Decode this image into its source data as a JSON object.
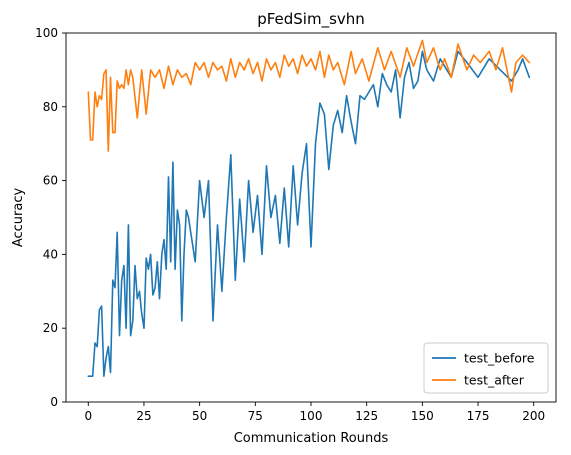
{
  "chart_data": {
    "type": "line",
    "title": "pFedSim_svhn",
    "xlabel": "Communication Rounds",
    "ylabel": "Accuracy",
    "xlim": [
      -10,
      210
    ],
    "ylim": [
      0,
      100
    ],
    "xticks": [
      0,
      25,
      50,
      75,
      100,
      125,
      150,
      175,
      200
    ],
    "yticks": [
      0,
      20,
      40,
      60,
      80,
      100
    ],
    "grid": false,
    "legend_position": "lower-right",
    "series": [
      {
        "name": "test_before",
        "color": "#1f77b4",
        "x": [
          0,
          2,
          3,
          4,
          5,
          6,
          7,
          8,
          9,
          10,
          11,
          12,
          13,
          14,
          15,
          16,
          17,
          18,
          19,
          20,
          21,
          22,
          23,
          24,
          25,
          26,
          27,
          28,
          29,
          30,
          31,
          32,
          33,
          34,
          35,
          36,
          37,
          38,
          39,
          40,
          41,
          42,
          43,
          44,
          45,
          46,
          48,
          50,
          52,
          54,
          56,
          58,
          60,
          62,
          64,
          66,
          68,
          70,
          72,
          74,
          76,
          78,
          80,
          82,
          84,
          86,
          88,
          90,
          92,
          94,
          96,
          98,
          100,
          102,
          104,
          106,
          108,
          110,
          112,
          114,
          116,
          118,
          120,
          122,
          124,
          126,
          128,
          130,
          132,
          134,
          136,
          138,
          140,
          142,
          144,
          146,
          148,
          150,
          152,
          155,
          158,
          160,
          163,
          166,
          170,
          175,
          180,
          185,
          190,
          193,
          195,
          198
        ],
        "values": [
          7,
          7,
          16,
          15,
          25,
          26,
          7,
          12,
          15,
          8,
          33,
          31,
          46,
          18,
          33,
          37,
          20,
          48,
          18,
          22,
          37,
          28,
          30,
          24,
          20,
          39,
          36,
          40,
          29,
          31,
          38,
          28,
          40,
          44,
          36,
          61,
          38,
          65,
          36,
          52,
          48,
          22,
          40,
          52,
          50,
          46,
          38,
          60,
          50,
          60,
          22,
          48,
          30,
          50,
          67,
          33,
          55,
          38,
          60,
          46,
          56,
          40,
          64,
          50,
          56,
          43,
          58,
          42,
          64,
          48,
          62,
          70,
          42,
          70,
          81,
          78,
          63,
          75,
          79,
          73,
          83,
          76,
          70,
          83,
          82,
          84,
          86,
          80,
          89,
          86,
          84,
          90,
          77,
          88,
          92,
          85,
          87,
          95,
          90,
          87,
          93,
          91,
          88,
          95,
          92,
          88,
          93,
          90,
          87,
          90,
          93,
          88
        ]
      },
      {
        "name": "test_after",
        "color": "#ff7f0e",
        "x": [
          0,
          1,
          2,
          3,
          4,
          5,
          6,
          7,
          8,
          9,
          10,
          11,
          12,
          13,
          14,
          15,
          16,
          17,
          18,
          19,
          20,
          22,
          24,
          26,
          28,
          30,
          32,
          34,
          36,
          38,
          40,
          42,
          44,
          46,
          48,
          50,
          52,
          54,
          56,
          58,
          60,
          62,
          64,
          66,
          68,
          70,
          72,
          74,
          76,
          78,
          80,
          82,
          84,
          86,
          88,
          90,
          92,
          94,
          96,
          98,
          100,
          102,
          104,
          106,
          108,
          110,
          112,
          115,
          118,
          120,
          123,
          126,
          130,
          133,
          136,
          140,
          143,
          146,
          150,
          152,
          155,
          158,
          160,
          163,
          166,
          170,
          173,
          176,
          180,
          183,
          186,
          190,
          192,
          195,
          198
        ],
        "values": [
          84,
          71,
          71,
          84,
          80,
          83,
          82,
          89,
          90,
          68,
          88,
          73,
          73,
          87,
          85,
          86,
          85,
          90,
          86,
          90,
          88,
          77,
          90,
          78,
          90,
          88,
          90,
          85,
          91,
          86,
          90,
          88,
          89,
          86,
          92,
          90,
          92,
          88,
          92,
          90,
          91,
          87,
          93,
          88,
          92,
          90,
          93,
          89,
          92,
          87,
          93,
          90,
          92,
          88,
          94,
          91,
          93,
          89,
          94,
          91,
          93,
          90,
          95,
          88,
          94,
          90,
          92,
          86,
          95,
          89,
          93,
          87,
          96,
          90,
          95,
          88,
          96,
          91,
          98,
          92,
          96,
          90,
          93,
          88,
          97,
          90,
          94,
          92,
          95,
          90,
          96,
          84,
          92,
          94,
          92
        ]
      }
    ]
  }
}
